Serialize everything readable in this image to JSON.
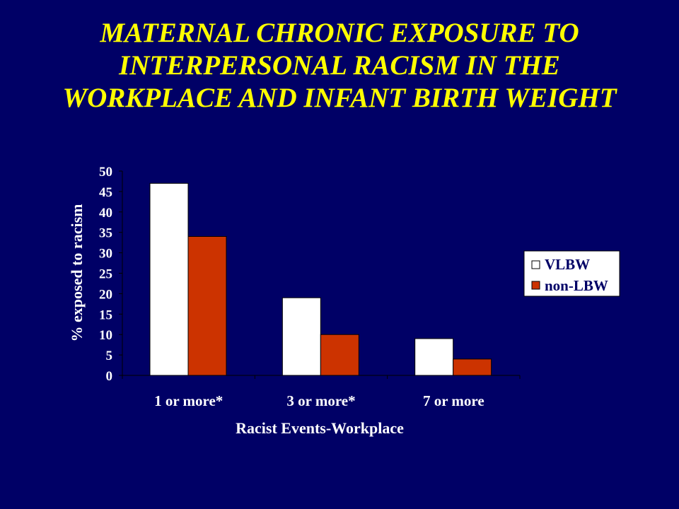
{
  "slide": {
    "title": "MATERNAL CHRONIC EXPOSURE TO INTERPERSONAL RACISM IN THE WORKPLACE AND INFANT BIRTH WEIGHT"
  },
  "colors": {
    "background": "#000066",
    "title": "#FFFF00",
    "text": "#FFFFFF",
    "series_vlbw": "#FFFFFF",
    "series_nonlbw": "#CC3300"
  },
  "chart_data": {
    "type": "bar",
    "title": "",
    "categories": [
      "1 or more*",
      "3 or more*",
      "7 or more"
    ],
    "series": [
      {
        "name": "VLBW",
        "values": [
          47,
          19,
          9
        ]
      },
      {
        "name": "non-LBW",
        "values": [
          34,
          10,
          4
        ]
      }
    ],
    "xlabel": "Racist Events-Workplace",
    "ylabel": "% exposed to  racism",
    "ylim": [
      0,
      50
    ],
    "yticks": [
      "0",
      "5",
      "10",
      "15",
      "20",
      "25",
      "30",
      "35",
      "40",
      "45",
      "50"
    ],
    "grid": false,
    "legend_position": "right"
  }
}
